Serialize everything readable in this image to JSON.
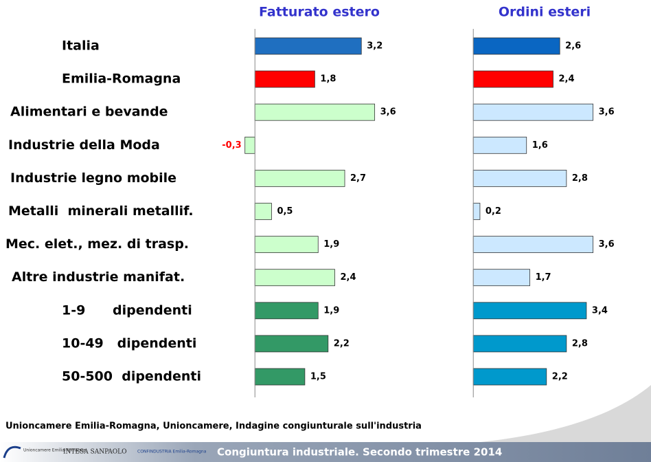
{
  "chart_data": [
    {
      "type": "bar",
      "orientation": "horizontal",
      "title": "Fatturato estero",
      "categories": [
        "Italia",
        "Emilia-Romagna",
        "Alimentari e bevande",
        "Industrie della Moda",
        "Industrie legno mobile",
        "Metalli  minerali metallif.",
        "Mec. elet., mez. di trasp.",
        "Altre industrie manifat.",
        "1-9      dipendenti",
        "10-49   dipendenti",
        "50-500  dipendenti"
      ],
      "values": [
        3.2,
        1.8,
        3.6,
        -0.3,
        2.7,
        0.5,
        1.9,
        2.4,
        1.9,
        2.2,
        1.5
      ],
      "value_labels": [
        "3,2",
        "1,8",
        "3,6",
        "-0,3",
        "2,7",
        "0,5",
        "1,9",
        "2,4",
        "1,9",
        "2,2",
        "1,5"
      ],
      "colors": [
        "#1f6fc0",
        "#ff0000",
        "#ccffcc",
        "#ccffcc",
        "#ccffcc",
        "#ccffcc",
        "#ccffcc",
        "#ccffcc",
        "#339966",
        "#339966",
        "#339966"
      ],
      "xlim": [
        -0.5,
        4
      ]
    },
    {
      "type": "bar",
      "orientation": "horizontal",
      "title": "Ordini esteri",
      "values": [
        2.6,
        2.4,
        3.6,
        1.6,
        2.8,
        0.2,
        3.6,
        1.7,
        3.4,
        2.8,
        2.2
      ],
      "value_labels": [
        "2,6",
        "2,4",
        "3,6",
        "1,6",
        "2,8",
        "0,2",
        "3,6",
        "1,7",
        "3,4",
        "2,8",
        "2,2"
      ],
      "colors": [
        "#0a66c2",
        "#ff0000",
        "#cce8ff",
        "#cce8ff",
        "#cce8ff",
        "#cce8ff",
        "#cce8ff",
        "#cce8ff",
        "#0099cc",
        "#0099cc",
        "#0099cc"
      ],
      "xlim": [
        -0.5,
        4
      ]
    }
  ],
  "source": "Unioncamere Emilia-Romagna, Unioncamere, Indagine congiunturale sull'industria",
  "footer": {
    "logo_1": "Unioncamere Emilia-Romagna",
    "logo_2": "INTESA SANPAOLO",
    "logo_3": "CONFINDUSTRIA Emilia-Romagna",
    "caption": "Congiuntura industriale. Secondo trimestre 2014"
  }
}
